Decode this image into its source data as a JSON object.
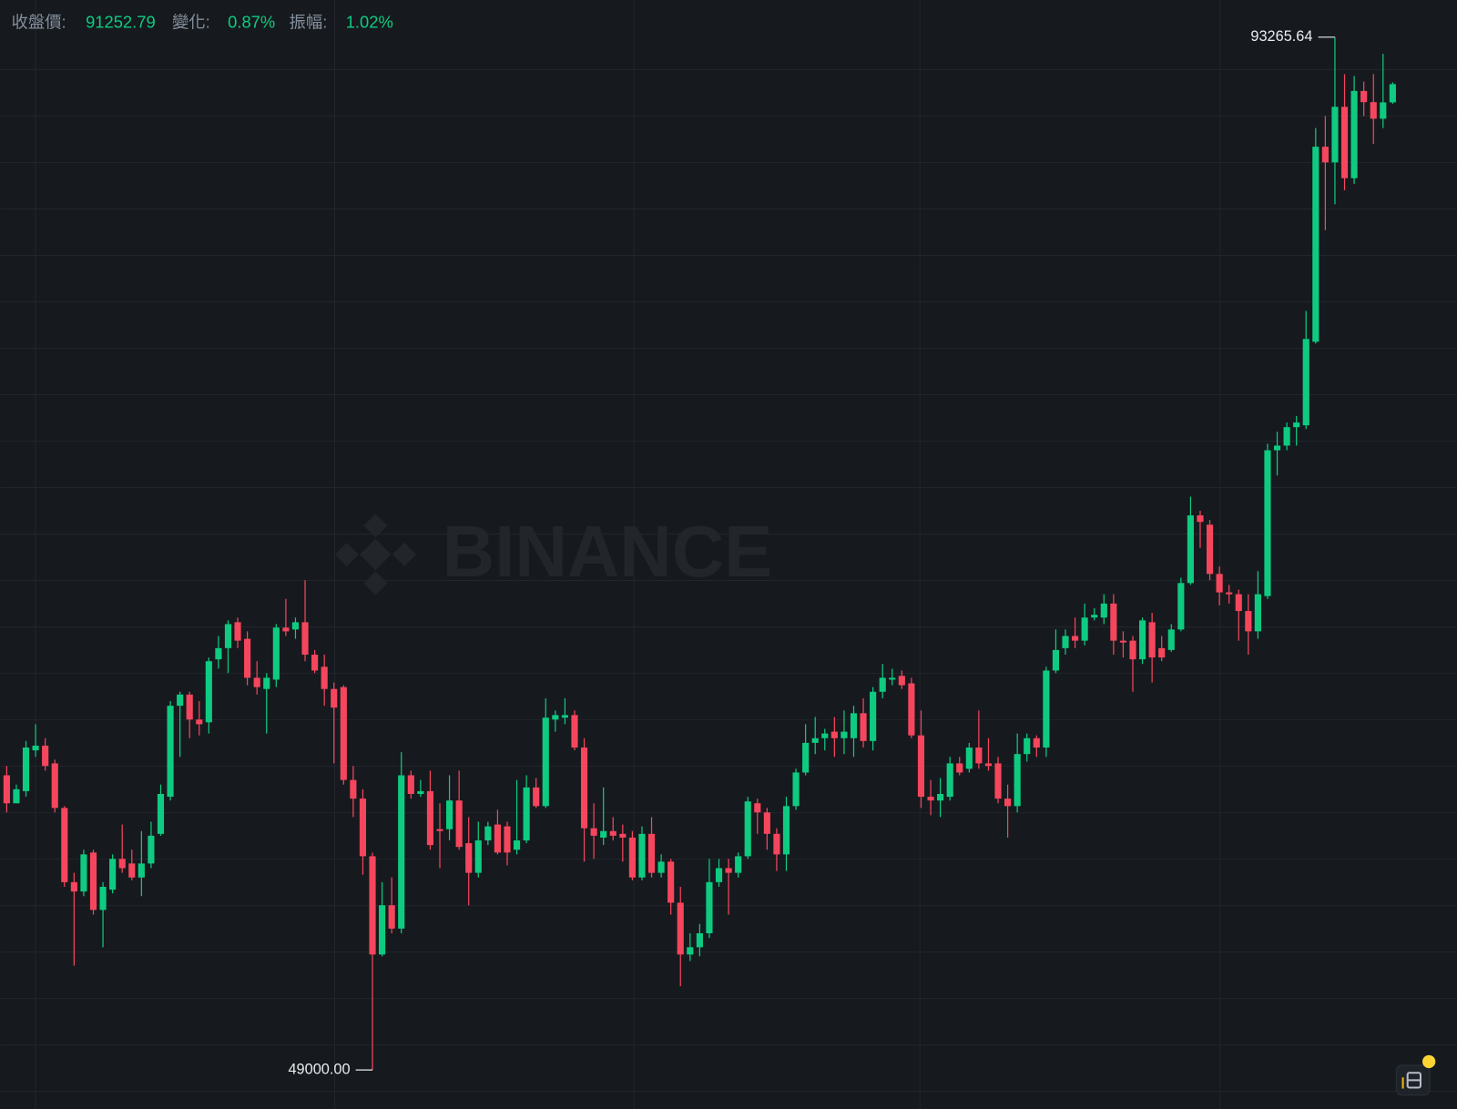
{
  "header": {
    "close_label": "收盤價:",
    "close": "91252.79",
    "change_label": "變化:",
    "change": "0.87%",
    "amplitude_label": "振幅:",
    "amplitude": "1.02%"
  },
  "chart_data": {
    "type": "candlestick",
    "watermark": "BINANCE",
    "up_color": "#0ecb81",
    "down_color": "#f6465d",
    "high_label": "93265.64",
    "low_label": "49000.00",
    "open": [
      61630,
      60430,
      60950,
      62700,
      62900,
      62140,
      60230,
      57050,
      56650,
      58320,
      55860,
      56730,
      58050,
      57850,
      57250,
      57850,
      59120,
      60710,
      64610,
      65090,
      64020,
      63900,
      66600,
      67080,
      68190,
      67480,
      65810,
      65330,
      65730,
      67960,
      67880,
      68190,
      66800,
      66280,
      65330,
      65410,
      61430,
      60630,
      58160,
      53950,
      56060,
      55060,
      61630,
      60830,
      60950,
      59320,
      59320,
      60550,
      58720,
      57450,
      58840,
      59520,
      59440,
      58440,
      58840,
      61110,
      60310,
      64020,
      64100,
      64210,
      62820,
      59360,
      58960,
      59240,
      59120,
      58960,
      57250,
      59120,
      57450,
      57930,
      56170,
      53950,
      54260,
      54860,
      57050,
      57650,
      57450,
      58160,
      60430,
      60040,
      59120,
      58240,
      60310,
      61750,
      63020,
      63220,
      63500,
      63220,
      63220,
      64290,
      63100,
      65210,
      65730,
      65890,
      65570,
      63340,
      60710,
      60550,
      60710,
      62140,
      61910,
      62820,
      62140,
      62140,
      60630,
      60310,
      62540,
      63220,
      62820,
      66120,
      67080,
      67600,
      67400,
      68390,
      68390,
      68990,
      67400,
      67400,
      66600,
      68190,
      67080,
      67000,
      67880,
      69870,
      72770,
      72370,
      70260,
      69470,
      69390,
      68670,
      67800,
      69310,
      75560,
      75760,
      76550,
      76630,
      80210,
      88570,
      87900,
      90280,
      87220,
      90960,
      90480,
      89770,
      90470
    ],
    "high": [
      62030,
      61230,
      63100,
      63820,
      63220,
      62300,
      60310,
      57450,
      58440,
      58440,
      57050,
      58240,
      59520,
      58440,
      59240,
      59640,
      61230,
      64810,
      65210,
      65210,
      64810,
      66680,
      67600,
      68270,
      68390,
      67800,
      66520,
      66010,
      68110,
      69190,
      68390,
      69990,
      67000,
      66800,
      65610,
      65490,
      62030,
      61030,
      58320,
      57050,
      57250,
      62620,
      61830,
      61430,
      61830,
      60430,
      61630,
      61830,
      59840,
      59640,
      59640,
      60150,
      59640,
      61430,
      61630,
      61510,
      64930,
      64410,
      64930,
      64410,
      63220,
      60430,
      61110,
      59840,
      59520,
      59240,
      59440,
      59840,
      58240,
      58050,
      56850,
      54860,
      55260,
      58050,
      58050,
      58050,
      58320,
      60710,
      60630,
      60230,
      59360,
      60710,
      61910,
      63820,
      64130,
      63620,
      64130,
      64410,
      64610,
      64930,
      65410,
      66400,
      66200,
      66120,
      65810,
      64410,
      61430,
      61510,
      62420,
      62420,
      63020,
      64410,
      63220,
      62420,
      61230,
      63420,
      63420,
      63340,
      66280,
      67880,
      67880,
      68390,
      68990,
      68790,
      69390,
      69390,
      67800,
      67600,
      68390,
      68590,
      67600,
      68110,
      70100,
      73570,
      72970,
      72570,
      70580,
      69790,
      69590,
      69390,
      70380,
      75840,
      76350,
      76750,
      77030,
      81530,
      89370,
      89880,
      93265.64,
      91680,
      91600,
      91360,
      91680,
      92550,
      91330
    ],
    "low": [
      60040,
      60430,
      60710,
      62420,
      61830,
      60040,
      56850,
      53470,
      56450,
      55660,
      54260,
      56570,
      57450,
      57130,
      56450,
      57650,
      59040,
      60550,
      62420,
      63220,
      63340,
      63420,
      66200,
      66010,
      67080,
      65490,
      65090,
      63420,
      65410,
      67600,
      67480,
      66520,
      66010,
      64610,
      62140,
      61230,
      59840,
      57370,
      49000,
      53870,
      54860,
      54860,
      60630,
      60710,
      58440,
      57650,
      58840,
      58440,
      56060,
      57250,
      58640,
      58240,
      57770,
      58240,
      58720,
      60230,
      60230,
      63500,
      63820,
      62700,
      57930,
      58050,
      58640,
      58840,
      57930,
      57130,
      57130,
      57250,
      57250,
      55660,
      52590,
      53670,
      53870,
      54660,
      56850,
      55660,
      57250,
      58050,
      59120,
      58440,
      57530,
      57530,
      60150,
      61630,
      62540,
      62700,
      62420,
      62540,
      62420,
      62820,
      62700,
      64930,
      65490,
      65330,
      63220,
      60230,
      59920,
      59840,
      60550,
      61630,
      61750,
      61910,
      61830,
      60430,
      58960,
      60040,
      62220,
      62420,
      62420,
      66010,
      66800,
      67080,
      67200,
      68270,
      68110,
      66800,
      66680,
      65210,
      66400,
      65610,
      66520,
      66920,
      67800,
      69790,
      71380,
      69990,
      68910,
      68990,
      67400,
      66800,
      67480,
      69190,
      74480,
      75560,
      75760,
      76470,
      80130,
      84990,
      86100,
      86700,
      86980,
      89880,
      88690,
      89370,
      90410
    ],
    "close": [
      60430,
      61030,
      62820,
      62900,
      62030,
      60230,
      57050,
      56650,
      58240,
      55860,
      56850,
      58050,
      57650,
      57250,
      57850,
      59040,
      60830,
      64610,
      65090,
      64020,
      63820,
      66520,
      67080,
      68110,
      67400,
      65810,
      65410,
      65810,
      67960,
      67800,
      68190,
      66800,
      66120,
      65330,
      64530,
      61430,
      60630,
      58160,
      53950,
      56060,
      55060,
      61630,
      60830,
      60950,
      58640,
      59240,
      60550,
      58560,
      57450,
      58840,
      59440,
      58320,
      58320,
      58840,
      61110,
      60310,
      64100,
      64210,
      64210,
      62820,
      59360,
      59040,
      59240,
      59040,
      58960,
      57250,
      59120,
      57450,
      57930,
      56170,
      53950,
      54260,
      54860,
      57050,
      57650,
      57450,
      58160,
      60510,
      60040,
      59120,
      58240,
      60310,
      61750,
      63020,
      63220,
      63420,
      63220,
      63500,
      64290,
      63100,
      65210,
      65810,
      65810,
      65490,
      63340,
      60710,
      60550,
      60830,
      62140,
      61750,
      62820,
      62140,
      62030,
      60630,
      60310,
      62540,
      63220,
      62820,
      66120,
      67000,
      67600,
      67400,
      68390,
      68510,
      68990,
      67400,
      67320,
      66600,
      68270,
      66680,
      66680,
      67880,
      69870,
      72770,
      72490,
      70260,
      69470,
      69390,
      68670,
      67800,
      69390,
      75560,
      75760,
      76550,
      76750,
      80330,
      88570,
      87900,
      90280,
      87220,
      90960,
      90480,
      89770,
      90470,
      91252.79
    ]
  }
}
